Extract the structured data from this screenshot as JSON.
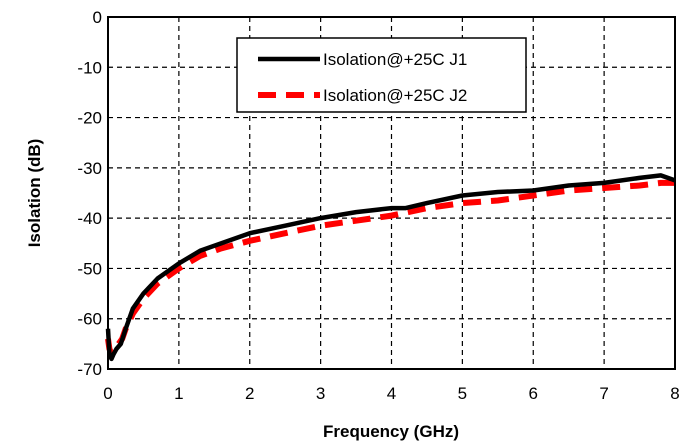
{
  "chart_data": {
    "type": "line",
    "title": "",
    "xlabel": "Frequency (GHz)",
    "ylabel": "Isolation (dB)",
    "xlim": [
      0,
      8
    ],
    "ylim": [
      -70,
      0
    ],
    "xticks": [
      0,
      1,
      2,
      3,
      4,
      5,
      6,
      7,
      8
    ],
    "yticks": [
      0,
      -10,
      -20,
      -30,
      -40,
      -50,
      -60,
      -70
    ],
    "grid": true,
    "legend_position": "top-center",
    "series": [
      {
        "name": "Isolation@+25C J1",
        "color": "#000000",
        "style": "solid",
        "x": [
          0.0,
          0.02,
          0.05,
          0.08,
          0.12,
          0.18,
          0.25,
          0.35,
          0.5,
          0.7,
          1.0,
          1.3,
          1.6,
          2.0,
          2.5,
          3.0,
          3.5,
          4.0,
          4.2,
          4.5,
          5.0,
          5.5,
          6.0,
          6.5,
          7.0,
          7.5,
          7.8,
          8.0
        ],
        "y": [
          -62,
          -67,
          -68,
          -67,
          -66,
          -65,
          -62,
          -58,
          -55,
          -52,
          -49,
          -46.5,
          -45,
          -43,
          -41.5,
          -40,
          -38.8,
          -38,
          -38,
          -37,
          -35.5,
          -34.8,
          -34.5,
          -33.5,
          -33,
          -32,
          -31.5,
          -32.5
        ]
      },
      {
        "name": "Isolation@+25C J2",
        "color": "#ff0000",
        "style": "dashed",
        "x": [
          0.0,
          0.02,
          0.05,
          0.1,
          0.15,
          0.2,
          0.25,
          0.35,
          0.5,
          0.7,
          1.0,
          1.3,
          1.6,
          2.0,
          2.5,
          3.0,
          3.5,
          4.0,
          4.5,
          5.0,
          5.5,
          6.0,
          6.5,
          7.0,
          7.5,
          7.8,
          8.0
        ],
        "y": [
          -64,
          -66,
          -67,
          -66,
          -65,
          -64,
          -62,
          -59,
          -56,
          -53,
          -50,
          -47.5,
          -46,
          -44.5,
          -43,
          -41.5,
          -40.5,
          -39.5,
          -38,
          -37,
          -36.5,
          -35.5,
          -34.5,
          -34,
          -33.5,
          -33,
          -33
        ]
      }
    ]
  }
}
